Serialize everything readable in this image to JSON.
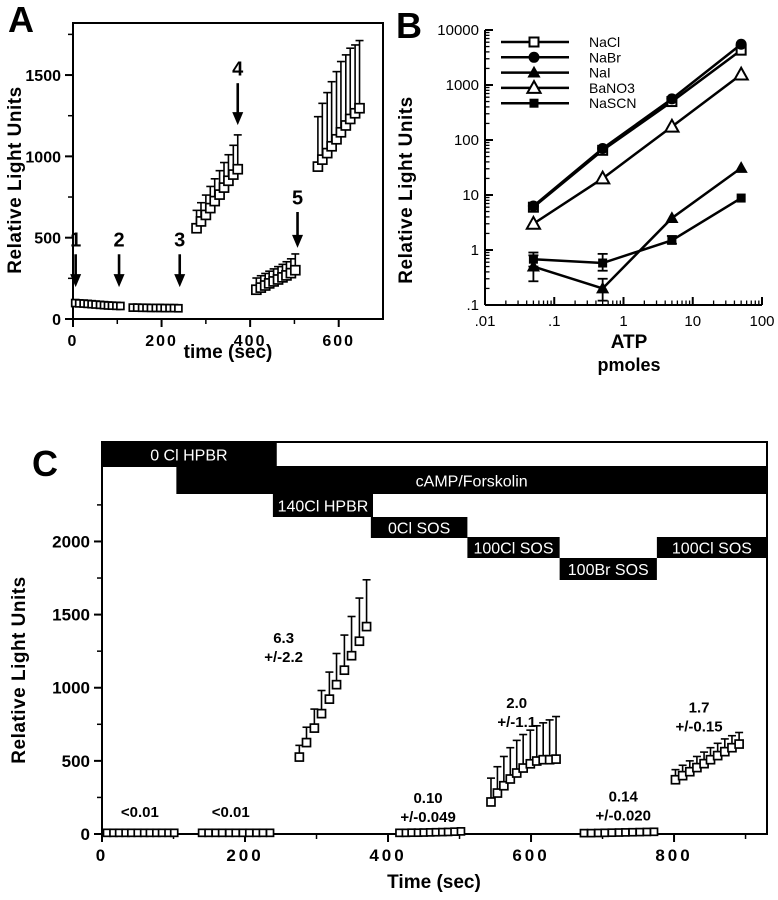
{
  "colors": {
    "ink": "#000000",
    "paper": "#ffffff"
  },
  "chart_data": [
    {
      "id": "A",
      "panel_label": "A",
      "type": "scatter",
      "xlabel": "time (sec)",
      "ylabel": "Relative Light Units",
      "xlim": [
        0,
        700
      ],
      "ylim": [
        0,
        1820
      ],
      "xticks": [
        0,
        200,
        400,
        600
      ],
      "xminor": [
        100,
        300,
        500
      ],
      "yticks": [
        0,
        500,
        1000,
        1500
      ],
      "yminor": [
        250,
        750,
        1250,
        1750
      ],
      "segments": [
        {
          "msize": 7,
          "x": [
            5,
            14,
            24,
            33,
            42,
            51,
            61,
            70,
            79,
            88,
            98,
            107
          ],
          "y": [
            98,
            96,
            95,
            93,
            91,
            89,
            87,
            85,
            83,
            82,
            81,
            80
          ]
        },
        {
          "msize": 7,
          "x": [
            135,
            145,
            156,
            166,
            176,
            187,
            197,
            207,
            218,
            228,
            238
          ],
          "y": [
            70,
            70,
            69,
            69,
            68,
            68,
            68,
            67,
            67,
            67,
            66
          ]
        },
        {
          "msize": 9,
          "x": [
            279,
            289,
            300,
            310,
            320,
            331,
            341,
            351,
            362,
            372
          ],
          "y": [
            558,
            600,
            640,
            682,
            725,
            765,
            808,
            850,
            888,
            921
          ],
          "yerr_top": [
            668,
            715,
            762,
            815,
            862,
            912,
            962,
            1010,
            1068,
            1132
          ]
        },
        {
          "msize": 9,
          "x": [
            414,
            424,
            434,
            443,
            453,
            463,
            473,
            482,
            492,
            502
          ],
          "y": [
            180,
            193,
            206,
            219,
            231,
            243,
            256,
            268,
            282,
            300
          ],
          "yerr_top": [
            252,
            266,
            280,
            294,
            308,
            322,
            336,
            352,
            370,
            400
          ]
        },
        {
          "msize": 9,
          "x": [
            553,
            563,
            574,
            584,
            595,
            605,
            616,
            626,
            637,
            647
          ],
          "y": [
            937,
            980,
            1020,
            1062,
            1105,
            1148,
            1190,
            1230,
            1265,
            1296
          ],
          "yerr_top": [
            1244,
            1326,
            1392,
            1459,
            1521,
            1583,
            1624,
            1665,
            1685,
            1712
          ]
        }
      ],
      "arrows": [
        {
          "label": "1",
          "x": 6,
          "label_v": 445,
          "from_v": 398,
          "to_v": 196
        },
        {
          "label": "2",
          "x": 104,
          "label_v": 445,
          "from_v": 398,
          "to_v": 196
        },
        {
          "label": "3",
          "x": 241,
          "label_v": 445,
          "from_v": 398,
          "to_v": 196
        },
        {
          "label": "4",
          "x": 372,
          "label_v": 1498,
          "from_v": 1450,
          "to_v": 1192
        },
        {
          "label": "5",
          "x": 507,
          "label_v": 705,
          "from_v": 658,
          "to_v": 437
        }
      ],
      "annotations": []
    },
    {
      "id": "B",
      "panel_label": "B",
      "type": "line",
      "xscale": "log",
      "yscale": "log",
      "xlabel": "ATP",
      "xlabel2": "pmoles",
      "ylabel": "Relative Light Units",
      "xlim": [
        0.01,
        100
      ],
      "ylim": [
        0.1,
        10000
      ],
      "xtick_labels": [
        ".01",
        ".1",
        "1",
        "10",
        "100"
      ],
      "xtick_values": [
        0.01,
        0.1,
        1,
        10,
        100
      ],
      "ytick_labels": [
        ".1",
        "1",
        "10",
        "100",
        "1000",
        "10000"
      ],
      "ytick_values": [
        0.1,
        1,
        10,
        100,
        1000,
        10000
      ],
      "x": [
        0.05,
        0.5,
        5,
        50
      ],
      "series": [
        {
          "name": "NaCl",
          "marker": "square-open",
          "y": [
            6,
            65,
            500,
            4300
          ],
          "yerr": [
            null,
            null,
            null,
            null
          ]
        },
        {
          "name": "NaBr",
          "marker": "circle-filled",
          "y": [
            6.3,
            70,
            560,
            5500
          ],
          "yerr": [
            null,
            null,
            null,
            null
          ]
        },
        {
          "name": "NaI",
          "marker": "triangle-filled",
          "y": [
            0.5,
            0.2,
            3.8,
            31
          ],
          "yerr": [
            [
              0.27,
              0.8
            ],
            [
              0.12,
              0.3
            ],
            null,
            null
          ]
        },
        {
          "name": "BaNO3",
          "marker": "triangle-open",
          "y": [
            3,
            20,
            175,
            1550
          ],
          "yerr": [
            null,
            null,
            null,
            null
          ]
        },
        {
          "name": "NaSCN",
          "marker": "square-filled",
          "y": [
            0.68,
            0.58,
            1.5,
            8.8
          ],
          "yerr": [
            [
              0.5,
              0.9
            ],
            [
              0.42,
              0.85
            ],
            [
              1.3,
              1.8
            ],
            null
          ]
        }
      ]
    },
    {
      "id": "C",
      "panel_label": "C",
      "type": "scatter",
      "xlabel": "Time (sec)",
      "ylabel": "Relative Light Units",
      "xlim": [
        0,
        930
      ],
      "ylim": [
        0,
        2680
      ],
      "xticks": [
        0,
        200,
        400,
        600,
        800
      ],
      "xminor": [
        100,
        300,
        500,
        700,
        900
      ],
      "yticks": [
        0,
        500,
        1000,
        1500,
        2000
      ],
      "yminor": [
        250,
        750,
        1250,
        1750,
        2250
      ],
      "protocol_bars": [
        {
          "label": "0 Cl HPBR",
          "row": 0,
          "t0": 0,
          "t1": 243,
          "style": "black"
        },
        {
          "label": "",
          "row": 0,
          "t0": 243,
          "t1": 930,
          "style": "outline"
        },
        {
          "label": "cAMP/Forskolin",
          "row": 1,
          "t0": 104,
          "t1": 930,
          "style": "black"
        },
        {
          "label": "140Cl HPBR",
          "row": 2,
          "t0": 239,
          "t1": 379,
          "style": "black"
        },
        {
          "label": "0Cl SOS",
          "row": 3,
          "t0": 376,
          "t1": 511,
          "style": "black"
        },
        {
          "label": "100Cl SOS",
          "row": 4,
          "t0": 511,
          "t1": 640,
          "style": "black"
        },
        {
          "label": "100Br SOS",
          "row": 5,
          "t0": 640,
          "t1": 776,
          "style": "black"
        },
        {
          "label": "100Cl SOS",
          "row": 4,
          "t0": 776,
          "t1": 930,
          "style": "black"
        }
      ],
      "segments": [
        {
          "msize": 7,
          "x": [
            7,
            16,
            24,
            33,
            41,
            50,
            59,
            67,
            76,
            84,
            93,
            101
          ],
          "y": [
            8,
            8,
            8,
            8,
            8,
            8,
            8,
            8,
            8,
            8,
            8,
            8
          ]
        },
        {
          "msize": 7,
          "x": [
            140,
            149,
            159,
            168,
            178,
            187,
            197,
            206,
            216,
            225,
            235
          ],
          "y": [
            8,
            8,
            8,
            8,
            8,
            8,
            8,
            8,
            8,
            8,
            8
          ]
        },
        {
          "msize": 8,
          "x": [
            276,
            286,
            297,
            307,
            318,
            328,
            339,
            349,
            360,
            370
          ],
          "y": [
            526,
            625,
            724,
            823,
            922,
            1021,
            1120,
            1219,
            1318,
            1418
          ],
          "yerr_top": [
            606,
            730,
            854,
            981,
            1107,
            1234,
            1360,
            1487,
            1613,
            1738
          ]
        },
        {
          "msize": 7,
          "x": [
            416,
            425,
            433,
            442,
            450,
            459,
            467,
            476,
            484,
            493,
            502
          ],
          "y": [
            8,
            8,
            9,
            9,
            10,
            11,
            12,
            13,
            14,
            16,
            18
          ]
        },
        {
          "msize": 8,
          "x": [
            544,
            553,
            562,
            571,
            580,
            589,
            599,
            608,
            617,
            626,
            635
          ],
          "y": [
            219,
            280,
            330,
            376,
            417,
            451,
            480,
            499,
            508,
            508,
            512
          ],
          "yerr_top": [
            382,
            460,
            530,
            590,
            640,
            680,
            710,
            740,
            760,
            780,
            803
          ]
        },
        {
          "msize": 7,
          "x": [
            674,
            684,
            694,
            703,
            713,
            723,
            732,
            742,
            752,
            762,
            772
          ],
          "y": [
            6,
            6,
            7,
            8,
            9,
            10,
            11,
            12,
            13,
            14,
            15
          ]
        },
        {
          "msize": 8,
          "x": [
            802,
            812,
            822,
            832,
            842,
            851,
            861,
            871,
            881,
            891
          ],
          "y": [
            371,
            399,
            426,
            454,
            481,
            508,
            536,
            563,
            590,
            615
          ],
          "yerr_top": [
            440,
            470,
            500,
            530,
            560,
            590,
            620,
            650,
            672,
            694
          ]
        }
      ],
      "arrows": [],
      "annotations": [
        {
          "x": 53,
          "v": 115,
          "lines": [
            "<0.01"
          ]
        },
        {
          "x": 180,
          "v": 115,
          "lines": [
            "<0.01"
          ]
        },
        {
          "x": 254,
          "v": 1305,
          "lines": [
            "6.3",
            "+/-2.2"
          ]
        },
        {
          "x": 456,
          "v": 212,
          "lines": [
            "0.10",
            "+/-0.049"
          ]
        },
        {
          "x": 580,
          "v": 861,
          "lines": [
            "2.0",
            "+/-1.1"
          ]
        },
        {
          "x": 729,
          "v": 223,
          "lines": [
            "0.14",
            "+/-0.020"
          ]
        },
        {
          "x": 835,
          "v": 831,
          "lines": [
            "1.7",
            "+/-0.15"
          ]
        }
      ]
    }
  ]
}
